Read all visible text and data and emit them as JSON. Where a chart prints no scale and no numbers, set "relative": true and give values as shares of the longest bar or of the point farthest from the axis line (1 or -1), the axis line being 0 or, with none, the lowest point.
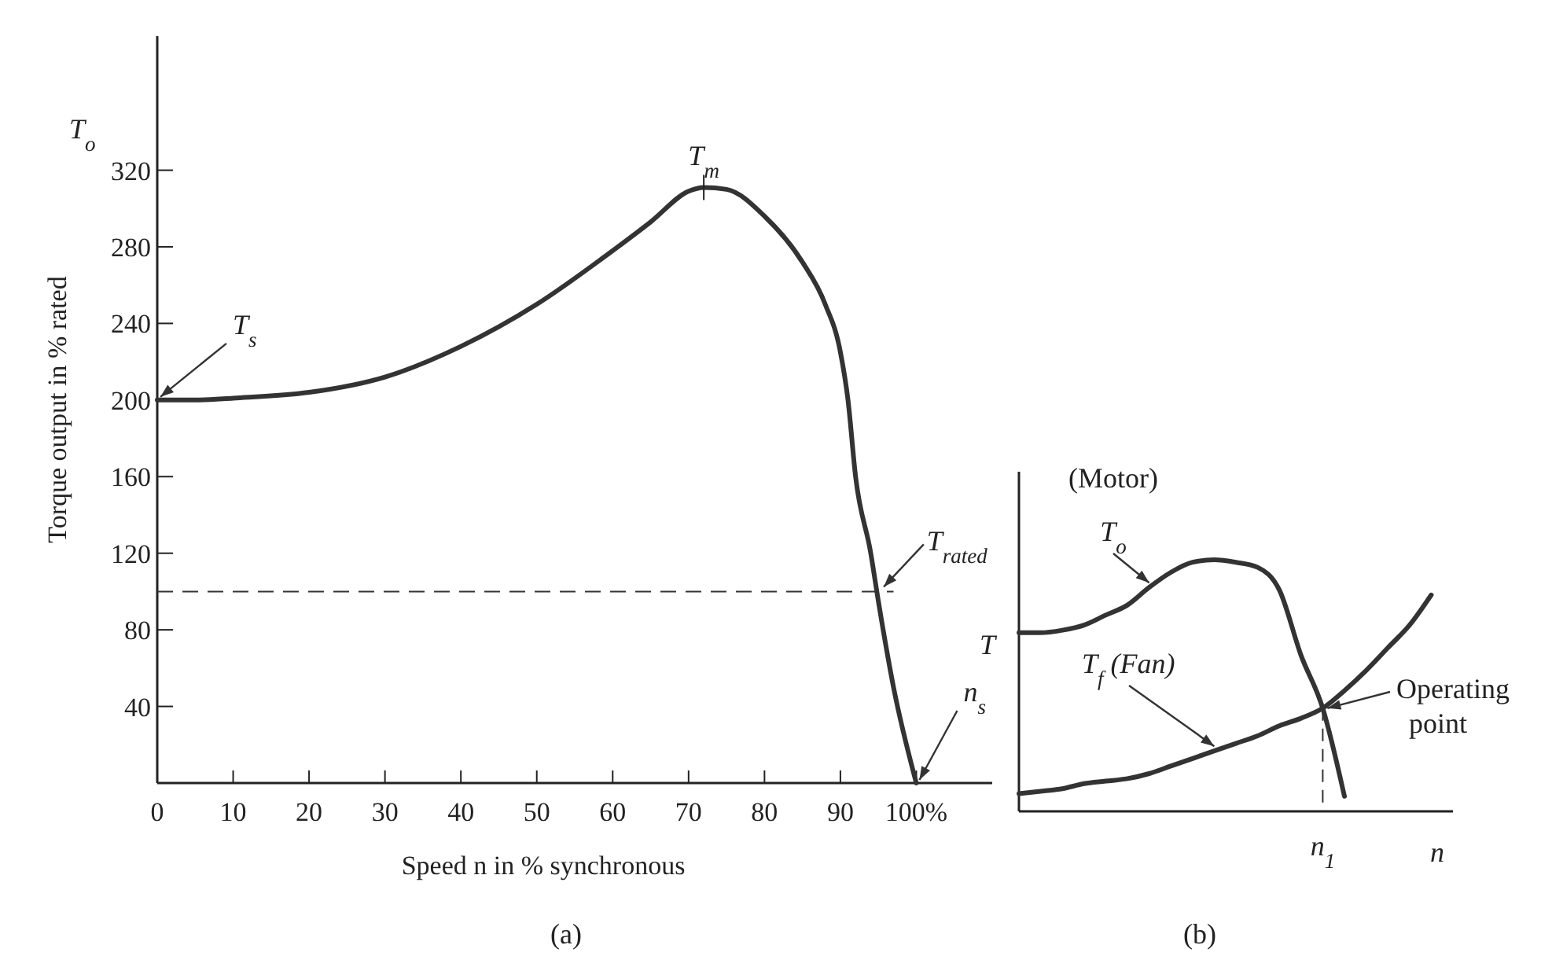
{
  "chart_data": [
    {
      "type": "line",
      "ylabel": "Torque output in % rated",
      "xlabel": "Speed n in % synchronous",
      "xlim": [
        0,
        110
      ],
      "ylim": [
        0,
        390
      ],
      "xticks": [
        {
          "value": 0,
          "label": "0"
        },
        10,
        20,
        30,
        40,
        50,
        60,
        70,
        80,
        90,
        {
          "value": 100,
          "label": "100%"
        }
      ],
      "yticks": [
        40,
        80,
        120,
        160,
        200,
        240,
        280,
        320
      ],
      "series": [
        {
          "color": "#333333",
          "x": [
            0,
            5,
            10,
            20,
            30,
            40,
            50,
            60,
            65,
            70,
            72,
            75,
            80,
            85,
            88,
            90,
            91,
            92,
            94,
            95,
            97,
            100
          ],
          "values": [
            200,
            200,
            201,
            204,
            212,
            228,
            250,
            278,
            293,
            309,
            311,
            310,
            296,
            272,
            250,
            225,
            200,
            160,
            120,
            95,
            50,
            0
          ]
        }
      ],
      "ref_lines": [
        {
          "axis": "y",
          "value": 100,
          "label": "T$_{rated}$",
          "line_style": "dashed",
          "color": "#333333"
        }
      ],
      "annotations": [
        "T$_{o}$",
        {
          "text": "T$_{m}$",
          "x": 72,
          "y": 311
        },
        {
          "text": "T$_{s}$",
          "x": 0,
          "y": 200
        },
        {
          "text": "n$_{s}$",
          "x": 100,
          "y": 0
        },
        "(a)"
      ],
      "marker": "none",
      "line_style": "solid",
      "grid": false
    },
    {
      "type": "line",
      "relative": true,
      "xlabel": "n",
      "ylabel": "T",
      "categories": [
        null,
        null,
        null,
        null,
        null,
        null,
        null,
        null,
        null,
        null,
        null,
        null,
        null,
        null,
        null,
        null,
        null,
        null,
        null,
        null
      ],
      "series": [
        {
          "color": "#333333",
          "values": [
            0.71,
            0.71,
            0.72,
            0.74,
            0.78,
            0.82,
            0.89,
            0.95,
            0.99,
            1,
            0.99,
            0.97,
            0.88,
            0.62,
            0.41,
            0.06,
            null,
            null,
            null,
            null
          ]
        },
        {
          "color": "#333333",
          "values": [
            0.07,
            0.08,
            0.09,
            0.11,
            0.12,
            0.13,
            0.15,
            0.18,
            0.21,
            0.24,
            0.27,
            0.3,
            0.34,
            0.37,
            0.41,
            0.48,
            0.56,
            0.65,
            0.74,
            0.86
          ]
        }
      ],
      "annotations": [
        "(Motor)",
        "T$_{o}$",
        "T$_{f}$ (Fan)",
        "Operating point",
        "(b)",
        "n$_{1}$"
      ],
      "marker": "none",
      "line_style": "solid",
      "grid": false
    }
  ]
}
